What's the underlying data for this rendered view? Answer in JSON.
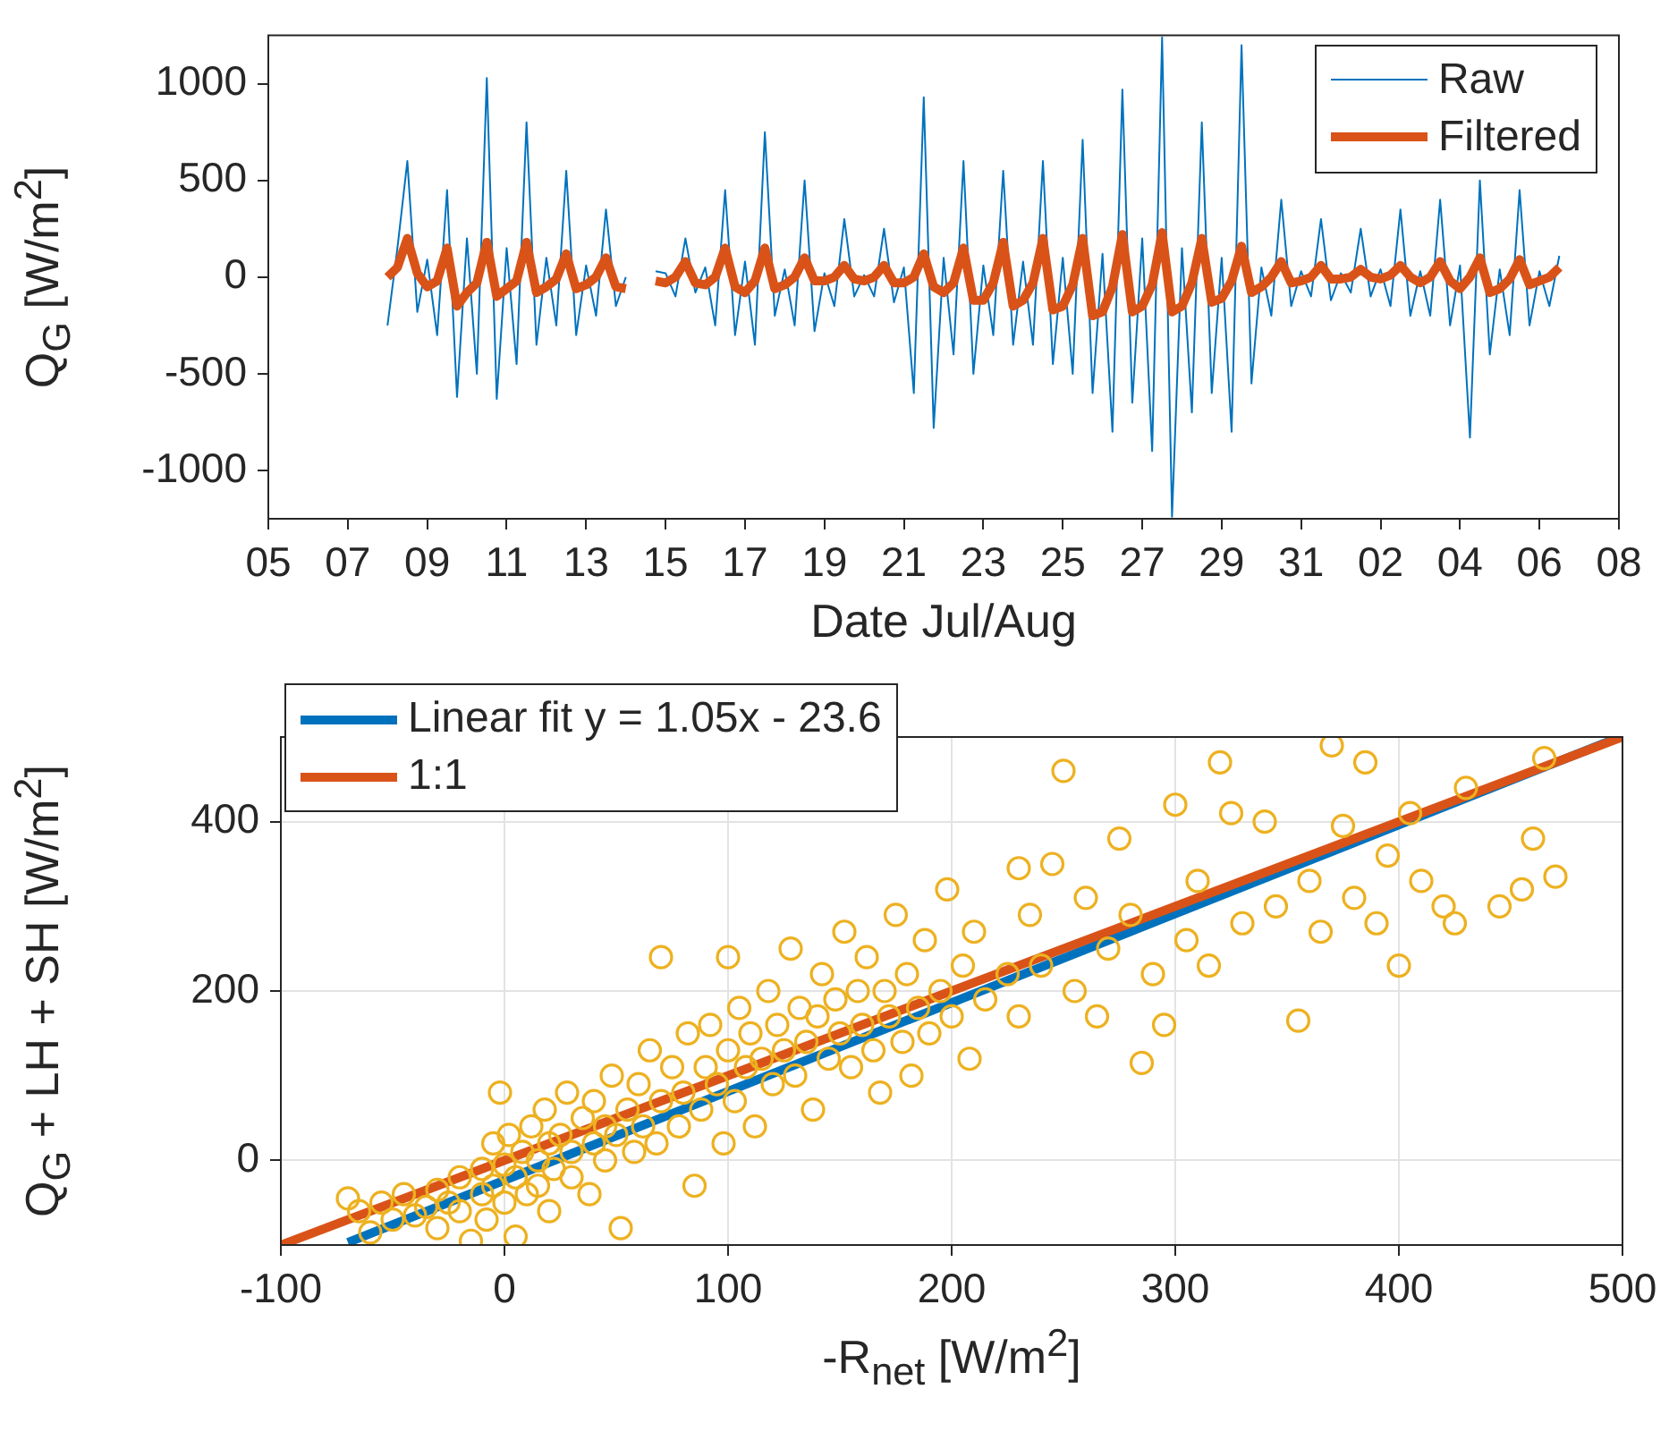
{
  "chart_data": [
    {
      "type": "line",
      "xlabel": "Date Jul/Aug",
      "ylabel": "Q$_{G}$ [W/m$^{2}$]",
      "legend": "top right",
      "grid": false,
      "xlim": [
        "--07-05",
        "--08-08"
      ],
      "xticks": [
        {
          "value": "--07-05",
          "label": "05"
        },
        {
          "value": "--07-07",
          "label": "07"
        },
        {
          "value": "--07-09",
          "label": "09"
        },
        {
          "value": "--07-11",
          "label": "11"
        },
        {
          "value": "--07-13",
          "label": "13"
        },
        {
          "value": "--07-15",
          "label": "15"
        },
        {
          "value": "--07-17",
          "label": "17"
        },
        {
          "value": "--07-19",
          "label": "19"
        },
        {
          "value": "--07-21",
          "label": "21"
        },
        {
          "value": "--07-23",
          "label": "23"
        },
        {
          "value": "--07-25",
          "label": "25"
        },
        {
          "value": "--07-27",
          "label": "27"
        },
        {
          "value": "--07-29",
          "label": "29"
        },
        {
          "value": "--07-31",
          "label": "31"
        },
        {
          "value": "--08-02",
          "label": "02"
        },
        {
          "value": "--08-04",
          "label": "04"
        },
        {
          "value": "--08-06",
          "label": "06"
        },
        {
          "value": "--08-08",
          "label": "08"
        }
      ],
      "ylim": [
        -1250,
        1250
      ],
      "yticks": [
        -1000,
        -500,
        0,
        500,
        1000
      ],
      "x": [
        "--07-08T00:00",
        "--07-08T06:00",
        "--07-08T12:00",
        "--07-08T18:00",
        "--07-09T00:00",
        "--07-09T06:00",
        "--07-09T12:00",
        "--07-09T18:00",
        "--07-10T00:00",
        "--07-10T06:00",
        "--07-10T12:00",
        "--07-10T18:00",
        "--07-11T00:00",
        "--07-11T06:00",
        "--07-11T12:00",
        "--07-11T18:00",
        "--07-12T00:00",
        "--07-12T06:00",
        "--07-12T12:00",
        "--07-12T18:00",
        "--07-13T00:00",
        "--07-13T06:00",
        "--07-13T12:00",
        "--07-13T18:00",
        "--07-14T00:00",
        "--07-14T06:00",
        "--07-14T12:00",
        "--07-14T18:00",
        "--07-15T00:00",
        "--07-15T06:00",
        "--07-15T12:00",
        "--07-15T18:00",
        "--07-16T00:00",
        "--07-16T06:00",
        "--07-16T12:00",
        "--07-16T18:00",
        "--07-17T00:00",
        "--07-17T06:00",
        "--07-17T12:00",
        "--07-17T18:00",
        "--07-18T00:00",
        "--07-18T06:00",
        "--07-18T12:00",
        "--07-18T18:00",
        "--07-19T00:00",
        "--07-19T06:00",
        "--07-19T12:00",
        "--07-19T18:00",
        "--07-20T00:00",
        "--07-20T06:00",
        "--07-20T12:00",
        "--07-20T18:00",
        "--07-21T00:00",
        "--07-21T06:00",
        "--07-21T12:00",
        "--07-21T18:00",
        "--07-22T00:00",
        "--07-22T06:00",
        "--07-22T12:00",
        "--07-22T18:00",
        "--07-23T00:00",
        "--07-23T06:00",
        "--07-23T12:00",
        "--07-23T18:00",
        "--07-24T00:00",
        "--07-24T06:00",
        "--07-24T12:00",
        "--07-24T18:00",
        "--07-25T00:00",
        "--07-25T06:00",
        "--07-25T12:00",
        "--07-25T18:00",
        "--07-26T00:00",
        "--07-26T06:00",
        "--07-26T12:00",
        "--07-26T18:00",
        "--07-27T00:00",
        "--07-27T06:00",
        "--07-27T12:00",
        "--07-27T18:00",
        "--07-28T00:00",
        "--07-28T06:00",
        "--07-28T12:00",
        "--07-28T18:00",
        "--07-29T00:00",
        "--07-29T06:00",
        "--07-29T12:00",
        "--07-29T18:00",
        "--07-30T00:00",
        "--07-30T06:00",
        "--07-30T12:00",
        "--07-30T18:00",
        "--07-31T00:00",
        "--07-31T06:00",
        "--07-31T12:00",
        "--07-31T18:00",
        "--08-01T00:00",
        "--08-01T06:00",
        "--08-01T12:00",
        "--08-01T18:00",
        "--08-02T00:00",
        "--08-02T06:00",
        "--08-02T12:00",
        "--08-02T18:00",
        "--08-03T00:00",
        "--08-03T06:00",
        "--08-03T12:00",
        "--08-03T18:00",
        "--08-04T00:00",
        "--08-04T06:00",
        "--08-04T12:00",
        "--08-04T18:00",
        "--08-05T00:00",
        "--08-05T06:00",
        "--08-05T12:00",
        "--08-05T18:00",
        "--08-06T00:00",
        "--08-06T06:00",
        "--08-06T12:00"
      ],
      "series": [
        {
          "name": "Raw",
          "color": "#0072bd",
          "values": [
            -250,
            150,
            600,
            -180,
            90,
            -300,
            450,
            -620,
            200,
            -500,
            1030,
            -630,
            150,
            -450,
            800,
            -350,
            100,
            -250,
            550,
            -300,
            60,
            -200,
            350,
            -150,
            0,
            null,
            null,
            30,
            20,
            -100,
            200,
            -80,
            50,
            -250,
            450,
            -300,
            80,
            -350,
            750,
            -200,
            40,
            -250,
            500,
            -280,
            20,
            -150,
            300,
            -100,
            10,
            -100,
            250,
            -130,
            50,
            -600,
            930,
            -780,
            100,
            -400,
            600,
            -500,
            60,
            -300,
            550,
            -350,
            80,
            -350,
            600,
            -450,
            100,
            -500,
            710,
            -600,
            120,
            -800,
            970,
            -650,
            200,
            -900,
            1240,
            -1240,
            150,
            -700,
            800,
            -600,
            100,
            -800,
            1200,
            -550,
            50,
            -200,
            400,
            -150,
            30,
            -100,
            300,
            -120,
            20,
            -80,
            250,
            -100,
            40,
            -150,
            350,
            -200,
            30,
            -200,
            400,
            -250,
            60,
            -830,
            500,
            -400,
            40,
            -300,
            450,
            -250,
            30,
            -150,
            110
          ]
        },
        {
          "name": "Filtered",
          "color": "#d95319",
          "values": [
            0,
            50,
            200,
            20,
            -50,
            -20,
            150,
            -150,
            -80,
            -30,
            180,
            -100,
            -60,
            -20,
            180,
            -80,
            -50,
            -10,
            120,
            -60,
            -40,
            0,
            100,
            -50,
            -60,
            null,
            null,
            -20,
            -30,
            0,
            80,
            -30,
            -40,
            0,
            150,
            -50,
            -80,
            -20,
            150,
            -60,
            -40,
            0,
            100,
            -20,
            -20,
            0,
            60,
            -10,
            -20,
            0,
            60,
            -30,
            -30,
            0,
            120,
            -50,
            -80,
            -30,
            150,
            -120,
            -120,
            -30,
            180,
            -150,
            -120,
            -30,
            200,
            -170,
            -150,
            -40,
            200,
            -200,
            -180,
            -50,
            220,
            -180,
            -150,
            -40,
            230,
            -180,
            -150,
            -30,
            200,
            -130,
            -110,
            -20,
            160,
            -80,
            -50,
            0,
            80,
            -30,
            -20,
            0,
            60,
            -10,
            -10,
            0,
            40,
            0,
            -10,
            10,
            60,
            0,
            -30,
            0,
            80,
            -20,
            -60,
            0,
            100,
            -80,
            -60,
            -10,
            90,
            -40,
            -20,
            0,
            50
          ]
        }
      ]
    },
    {
      "type": "scatter",
      "xlabel": "-R$_{net}$ [W/m$^{2}$]",
      "ylabel": "Q$_{G}$ + LH + SH [W/m$^{2}$]",
      "legend": "top left",
      "grid": true,
      "xlim": [
        -100,
        500
      ],
      "xticks": [
        -100,
        0,
        100,
        200,
        300,
        400,
        500
      ],
      "ylim": [
        -100,
        500
      ],
      "yticks": [
        0,
        200,
        400
      ],
      "series": [
        {
          "name": "Linear fit y = 1.05x - 23.6",
          "type": "line",
          "color": "#0072bd",
          "x": [
            -70,
            497
          ],
          "values": [
            -97,
            498
          ]
        },
        {
          "name": "1:1",
          "type": "line",
          "color": "#d95319",
          "x": [
            -100,
            500
          ],
          "values": [
            -100,
            500
          ]
        },
        {
          "type": "scatter",
          "marker": "circle",
          "color": "#edb120",
          "x": [
            -70,
            -65,
            -60,
            -55,
            -50,
            -45,
            -40,
            -35,
            -30,
            -30,
            -25,
            -20,
            -20,
            -15,
            -10,
            -10,
            -8,
            -5,
            -5,
            -2,
            0,
            0,
            2,
            5,
            5,
            8,
            10,
            12,
            15,
            15,
            18,
            20,
            20,
            22,
            25,
            28,
            30,
            30,
            35,
            38,
            40,
            40,
            45,
            45,
            48,
            50,
            52,
            55,
            58,
            60,
            62,
            65,
            68,
            70,
            70,
            75,
            78,
            80,
            82,
            85,
            88,
            90,
            92,
            95,
            98,
            100,
            100,
            103,
            105,
            108,
            110,
            112,
            115,
            118,
            120,
            122,
            125,
            128,
            130,
            132,
            135,
            138,
            140,
            142,
            145,
            148,
            150,
            152,
            155,
            158,
            160,
            162,
            165,
            168,
            170,
            172,
            175,
            178,
            180,
            182,
            185,
            188,
            190,
            195,
            198,
            200,
            205,
            208,
            210,
            215,
            230,
            225,
            230,
            235,
            240,
            245,
            250,
            255,
            260,
            265,
            270,
            275,
            280,
            285,
            290,
            295,
            300,
            305,
            310,
            315,
            320,
            325,
            330,
            340,
            345,
            355,
            360,
            365,
            370,
            375,
            380,
            385,
            390,
            395,
            400,
            405,
            410,
            420,
            425,
            430,
            445,
            455,
            460,
            465,
            470
          ],
          "values": [
            -45,
            -60,
            -85,
            -50,
            -70,
            -40,
            -65,
            -55,
            -35,
            -80,
            -50,
            -20,
            -60,
            -95,
            -10,
            -40,
            -70,
            20,
            -30,
            80,
            -5,
            -50,
            30,
            -20,
            -90,
            10,
            -40,
            40,
            0,
            -30,
            60,
            20,
            -60,
            -10,
            30,
            80,
            10,
            -20,
            50,
            -40,
            20,
            70,
            0,
            40,
            100,
            30,
            -80,
            60,
            10,
            90,
            40,
            130,
            20,
            70,
            240,
            110,
            40,
            80,
            150,
            -30,
            60,
            110,
            160,
            90,
            20,
            130,
            240,
            70,
            180,
            110,
            150,
            40,
            120,
            200,
            90,
            160,
            130,
            250,
            100,
            180,
            140,
            60,
            170,
            220,
            120,
            190,
            150,
            270,
            110,
            200,
            160,
            240,
            130,
            80,
            200,
            170,
            290,
            140,
            220,
            100,
            180,
            260,
            150,
            200,
            320,
            170,
            230,
            120,
            270,
            190,
            345,
            220,
            170,
            290,
            230,
            350,
            460,
            200,
            310,
            170,
            250,
            380,
            290,
            115,
            220,
            160,
            420,
            260,
            330,
            230,
            470,
            410,
            280,
            400,
            300,
            165,
            330,
            270,
            490,
            395,
            310,
            470,
            280,
            360,
            230,
            410,
            330,
            300,
            280,
            440,
            300,
            320,
            380,
            475,
            335
          ]
        }
      ]
    }
  ]
}
